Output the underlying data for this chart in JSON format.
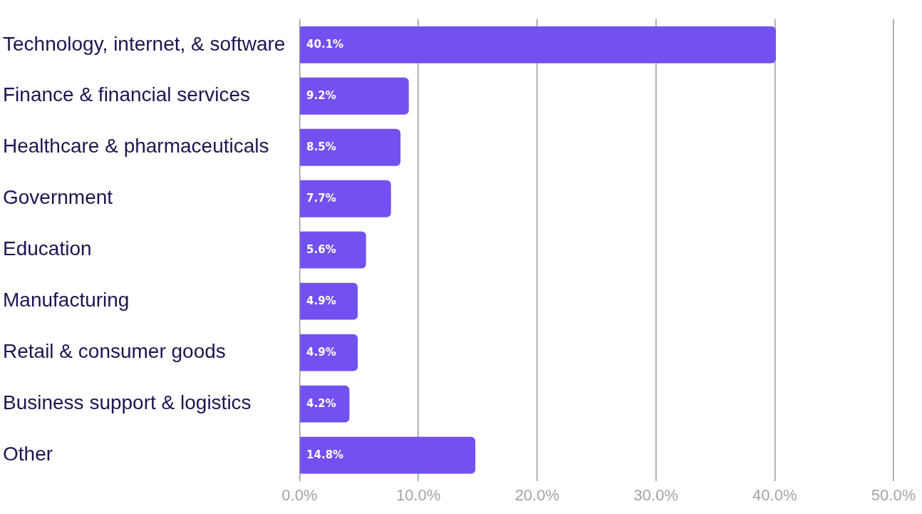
{
  "chart_data": {
    "type": "bar",
    "orientation": "horizontal",
    "categories": [
      "Technology, internet, & software",
      "Finance & financial services",
      "Healthcare & pharmaceuticals",
      "Government",
      "Education",
      "Manufacturing",
      "Retail & consumer goods",
      "Business support & logistics",
      "Other"
    ],
    "values": [
      40.1,
      9.2,
      8.5,
      7.7,
      5.6,
      4.9,
      4.9,
      4.2,
      14.8
    ],
    "value_labels": [
      "40.1%",
      "9.2%",
      "8.5%",
      "7.7%",
      "5.6%",
      "4.9%",
      "4.9%",
      "4.2%",
      "14.8%"
    ],
    "color": "#7350f0",
    "xlim": [
      0,
      50
    ],
    "xticks": [
      {
        "value": 0,
        "label": "0.0%"
      },
      {
        "value": 10,
        "label": "10.0%"
      },
      {
        "value": 20,
        "label": "20.0%"
      },
      {
        "value": 30,
        "label": "30.0%"
      },
      {
        "value": 40,
        "label": "40.0%"
      },
      {
        "value": 50,
        "label": "50.0%"
      }
    ],
    "grid": "x"
  }
}
